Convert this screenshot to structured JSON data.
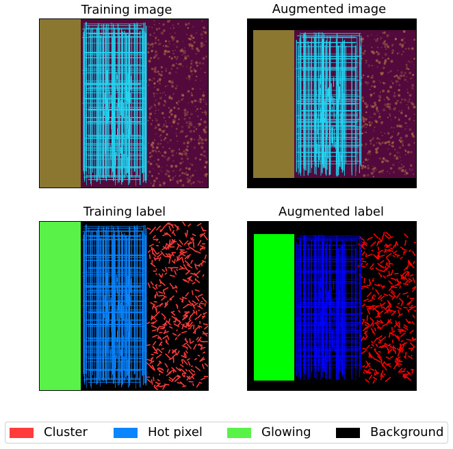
{
  "chart_data": [
    {
      "type": "heatmap",
      "title": "Training image"
    },
    {
      "type": "heatmap",
      "title": "Augmented image"
    },
    {
      "type": "heatmap",
      "title": "Training label"
    },
    {
      "type": "heatmap",
      "title": "Augmented label"
    }
  ],
  "legend": {
    "placement": "bottom",
    "items": [
      {
        "label": "Cluster",
        "color": "#ff3b3b"
      },
      {
        "label": "Hot pixel",
        "color": "#0a84ff"
      },
      {
        "label": "Glowing",
        "color": "#59f249"
      },
      {
        "label": "Background",
        "color": "#000000"
      }
    ]
  },
  "colors": {
    "image_background": "#520a3d",
    "image_glowing": "#8b7730",
    "image_hotpixel": "#22d6f2",
    "image_cluster": "#b57043",
    "label_glowing_augmented": "#00ff00",
    "label_hotpixel_augmented": "#0000ff",
    "label_cluster_augmented": "#ff0000"
  }
}
